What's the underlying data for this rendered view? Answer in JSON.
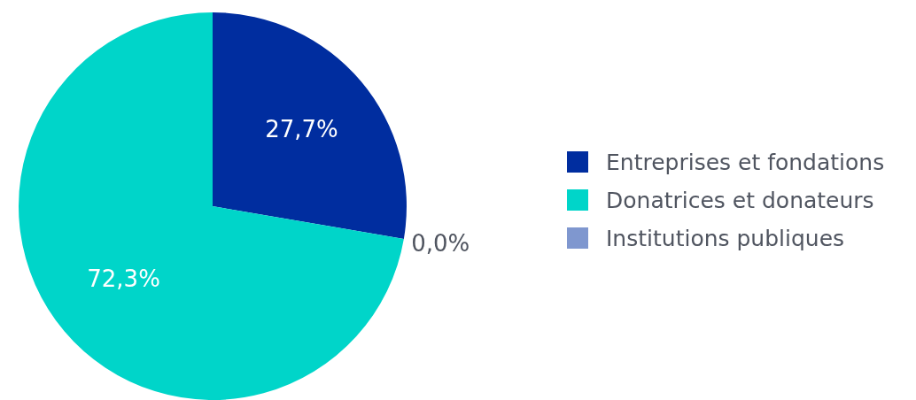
{
  "chart_data": {
    "type": "pie",
    "categories": [
      "Entreprises et fondations",
      "Donatrices et donateurs",
      "Institutions publiques"
    ],
    "values": [
      27.7,
      72.3,
      0.0
    ],
    "colors": [
      "#002d9f",
      "#00d5c9",
      "#7f97cf"
    ],
    "value_labels": [
      "27,7%",
      "72,3%",
      "0,0%"
    ],
    "legend": "right"
  }
}
